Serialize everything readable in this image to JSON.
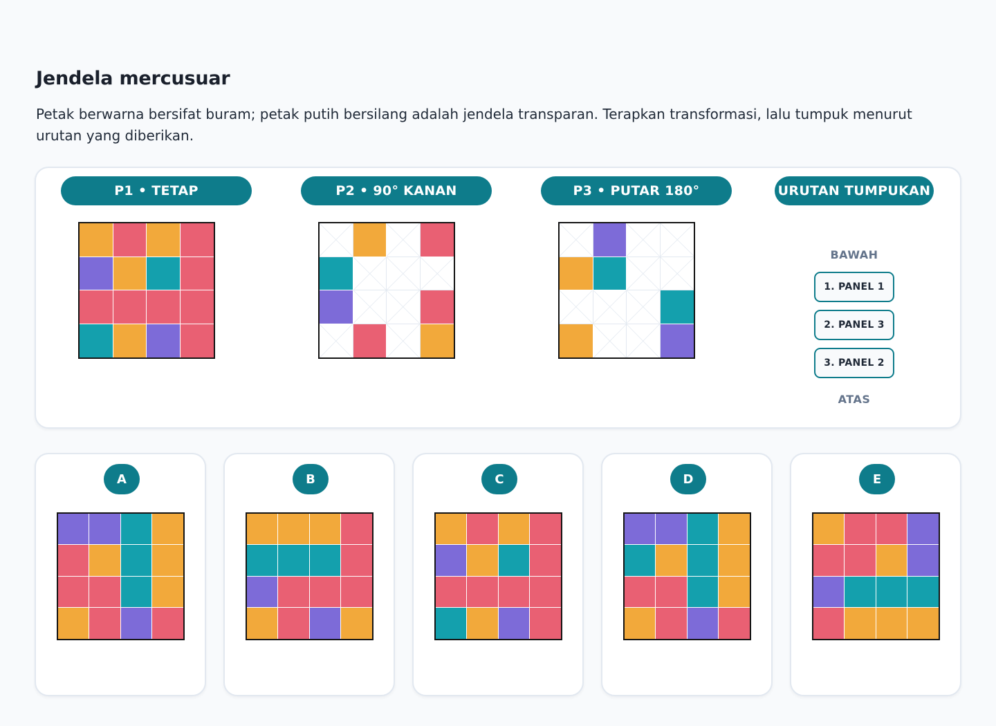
{
  "title": "Jendela mercusuar",
  "instruction": "Petak berwarna bersifat buram; petak putih bersilang adalah jendela transparan. Terapkan transformasi, lalu tumpuk menurut urutan yang diberikan.",
  "colors": {
    "O": "#f2a93b",
    "R": "#e96073",
    "P": "#7d6bd8",
    "T": "#14a0ad",
    "accent": "#0e7c8b"
  },
  "panels": [
    {
      "label": "P1 • TETAP",
      "cells": [
        "O",
        "R",
        "O",
        "R",
        "P",
        "O",
        "T",
        "R",
        "R",
        "R",
        "R",
        "R",
        "T",
        "O",
        "P",
        "R"
      ]
    },
    {
      "label": "P2 • 90° KANAN",
      "cells": [
        "W",
        "O",
        "W",
        "R",
        "T",
        "W",
        "W",
        "W",
        "P",
        "W",
        "W",
        "R",
        "W",
        "R",
        "W",
        "O"
      ]
    },
    {
      "label": "P3 • PUTAR 180°",
      "cells": [
        "W",
        "P",
        "W",
        "W",
        "O",
        "T",
        "W",
        "W",
        "W",
        "W",
        "W",
        "T",
        "O",
        "W",
        "W",
        "P"
      ]
    }
  ],
  "stack": {
    "label": "URUTAN TUMPUKAN",
    "bottom": "BAWAH",
    "top": "ATAS",
    "items": [
      "1. PANEL 1",
      "2. PANEL 3",
      "3. PANEL 2"
    ]
  },
  "options": [
    {
      "letter": "A",
      "cells": [
        "P",
        "P",
        "T",
        "O",
        "R",
        "O",
        "T",
        "O",
        "R",
        "R",
        "T",
        "O",
        "O",
        "R",
        "P",
        "R"
      ]
    },
    {
      "letter": "B",
      "cells": [
        "O",
        "O",
        "O",
        "R",
        "T",
        "T",
        "T",
        "R",
        "P",
        "R",
        "R",
        "R",
        "O",
        "R",
        "P",
        "O"
      ]
    },
    {
      "letter": "C",
      "cells": [
        "O",
        "R",
        "O",
        "R",
        "P",
        "O",
        "T",
        "R",
        "R",
        "R",
        "R",
        "R",
        "T",
        "O",
        "P",
        "R"
      ]
    },
    {
      "letter": "D",
      "cells": [
        "P",
        "P",
        "T",
        "O",
        "T",
        "O",
        "T",
        "O",
        "R",
        "R",
        "T",
        "O",
        "O",
        "R",
        "P",
        "R"
      ]
    },
    {
      "letter": "E",
      "cells": [
        "O",
        "R",
        "R",
        "P",
        "R",
        "R",
        "O",
        "P",
        "P",
        "T",
        "T",
        "T",
        "R",
        "O",
        "O",
        "O"
      ]
    }
  ]
}
